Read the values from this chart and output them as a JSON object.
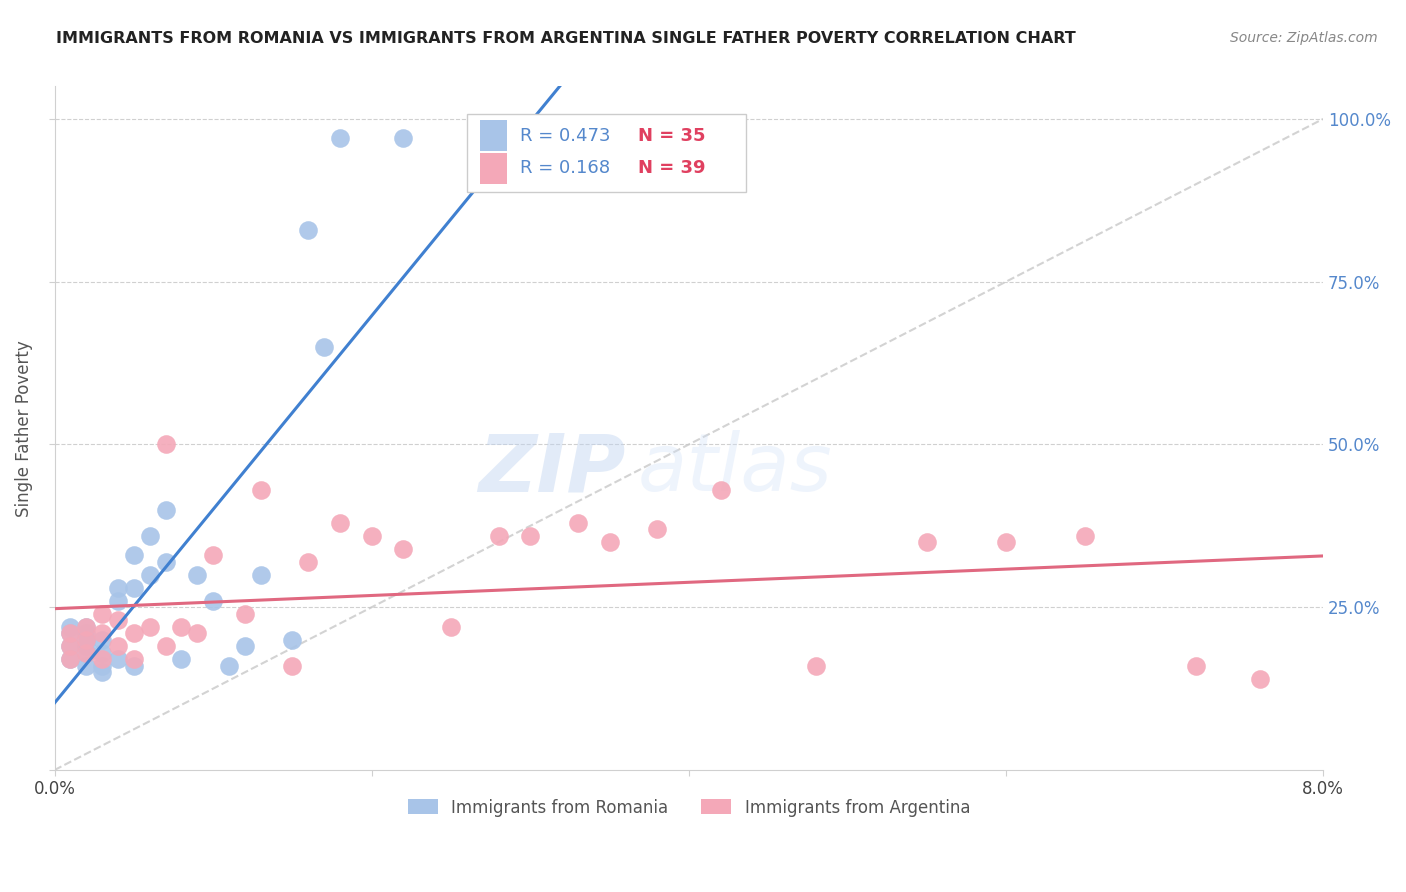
{
  "title": "IMMIGRANTS FROM ROMANIA VS IMMIGRANTS FROM ARGENTINA SINGLE FATHER POVERTY CORRELATION CHART",
  "source": "Source: ZipAtlas.com",
  "ylabel": "Single Father Poverty",
  "xlim": [
    0.0,
    0.08
  ],
  "ylim": [
    0.0,
    1.05
  ],
  "yticks": [
    0.0,
    0.25,
    0.5,
    0.75,
    1.0
  ],
  "ytick_labels": [
    "",
    "25.0%",
    "50.0%",
    "75.0%",
    "100.0%"
  ],
  "xtick_vals": [
    0.0,
    0.02,
    0.04,
    0.06,
    0.08
  ],
  "xtick_labels": [
    "0.0%",
    "",
    "",
    "",
    "8.0%"
  ],
  "romania_color": "#a8c4e8",
  "argentina_color": "#f4a8b8",
  "romania_line_color": "#4080d0",
  "argentina_line_color": "#e06880",
  "diagonal_color": "#c8c8c8",
  "romania_R": 0.473,
  "romania_N": 35,
  "argentina_R": 0.168,
  "argentina_N": 39,
  "legend_label_romania": "Immigrants from Romania",
  "legend_label_argentina": "Immigrants from Argentina",
  "watermark": "ZIPatlas",
  "romania_x": [
    0.001,
    0.001,
    0.001,
    0.001,
    0.002,
    0.002,
    0.002,
    0.002,
    0.002,
    0.002,
    0.003,
    0.003,
    0.003,
    0.003,
    0.004,
    0.004,
    0.004,
    0.005,
    0.005,
    0.005,
    0.006,
    0.006,
    0.007,
    0.007,
    0.008,
    0.009,
    0.01,
    0.011,
    0.012,
    0.013,
    0.015,
    0.016,
    0.017,
    0.018,
    0.022
  ],
  "romania_y": [
    0.19,
    0.21,
    0.22,
    0.17,
    0.18,
    0.2,
    0.22,
    0.16,
    0.19,
    0.21,
    0.16,
    0.18,
    0.2,
    0.15,
    0.26,
    0.28,
    0.17,
    0.28,
    0.33,
    0.16,
    0.3,
    0.36,
    0.32,
    0.4,
    0.17,
    0.3,
    0.26,
    0.16,
    0.19,
    0.3,
    0.2,
    0.83,
    0.65,
    0.97,
    0.97
  ],
  "argentina_x": [
    0.001,
    0.001,
    0.001,
    0.002,
    0.002,
    0.002,
    0.003,
    0.003,
    0.003,
    0.004,
    0.004,
    0.005,
    0.005,
    0.006,
    0.007,
    0.007,
    0.008,
    0.009,
    0.01,
    0.012,
    0.013,
    0.015,
    0.016,
    0.018,
    0.02,
    0.022,
    0.025,
    0.028,
    0.03,
    0.033,
    0.035,
    0.038,
    0.042,
    0.048,
    0.055,
    0.06,
    0.065,
    0.072,
    0.076
  ],
  "argentina_y": [
    0.19,
    0.17,
    0.21,
    0.18,
    0.2,
    0.22,
    0.17,
    0.21,
    0.24,
    0.19,
    0.23,
    0.17,
    0.21,
    0.22,
    0.19,
    0.5,
    0.22,
    0.21,
    0.33,
    0.24,
    0.43,
    0.16,
    0.32,
    0.38,
    0.36,
    0.34,
    0.22,
    0.36,
    0.36,
    0.38,
    0.35,
    0.37,
    0.43,
    0.16,
    0.35,
    0.35,
    0.36,
    0.16,
    0.14
  ]
}
